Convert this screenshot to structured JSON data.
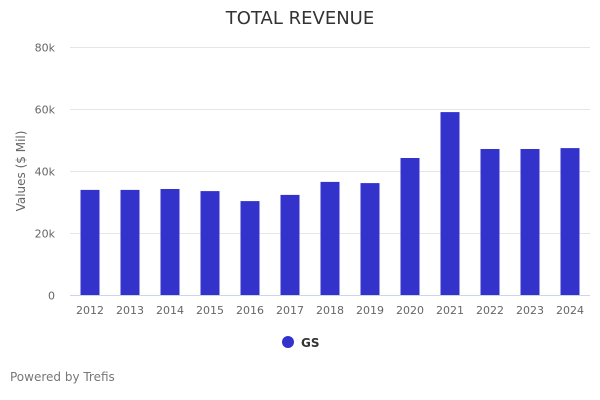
{
  "chart_data": {
    "type": "bar",
    "title": "TOTAL REVENUE",
    "xlabel": "",
    "ylabel": "Values ($ Mil)",
    "categories": [
      "2012",
      "2013",
      "2014",
      "2015",
      "2016",
      "2017",
      "2018",
      "2019",
      "2020",
      "2021",
      "2022",
      "2023",
      "2024"
    ],
    "series": [
      {
        "name": "GS",
        "color": "#3333cc",
        "values": [
          33900,
          33900,
          34200,
          33500,
          30300,
          32300,
          36500,
          36100,
          44200,
          59000,
          47100,
          47100,
          47400
        ]
      }
    ],
    "ylim": [
      0,
      80000
    ],
    "yticks": [
      0,
      20000,
      40000,
      60000,
      80000
    ],
    "ytick_labels": [
      "0",
      "20k",
      "40k",
      "60k",
      "80k"
    ],
    "grid": true,
    "legend": "bottom-center"
  },
  "credit": "Powered by Trefis"
}
